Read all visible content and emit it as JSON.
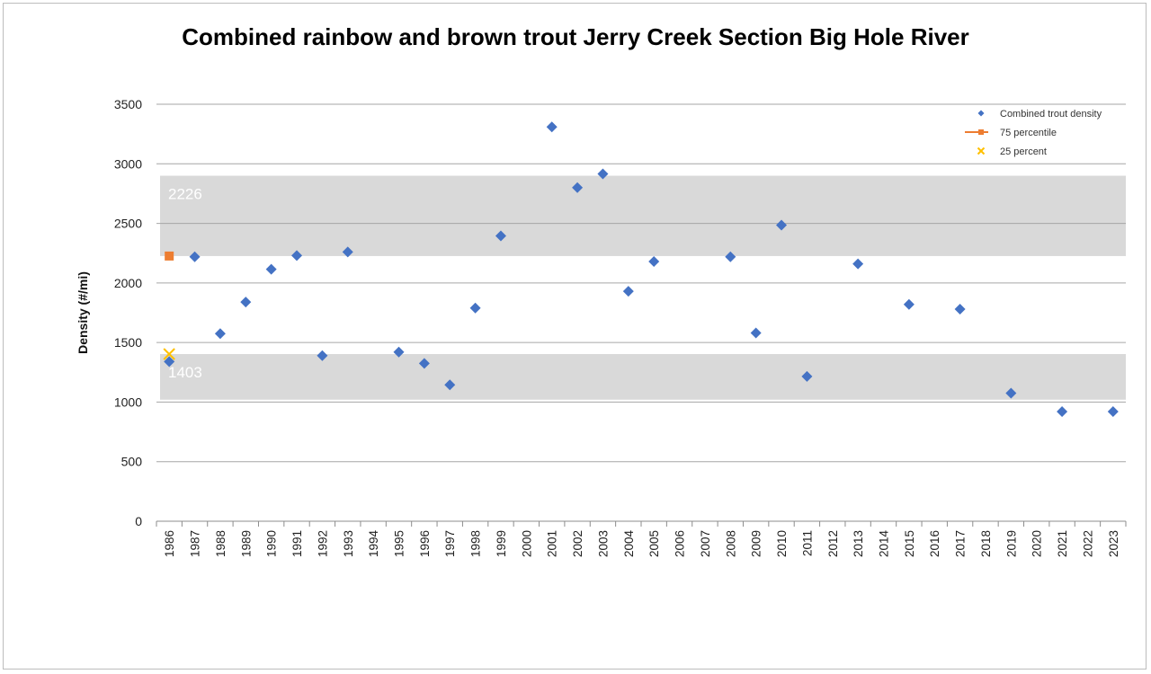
{
  "chart_data": {
    "type": "scatter",
    "title": "Combined rainbow and brown trout Jerry Creek Section Big Hole River",
    "ylabel": "Density (#/mi)",
    "xlabel": "",
    "ylim": [
      0,
      3500
    ],
    "yticks": [
      0,
      500,
      1000,
      1500,
      2000,
      2500,
      3000,
      3500
    ],
    "grid": "horizontal",
    "legend_position": "top-right",
    "categories": [
      "1986",
      "1987",
      "1988",
      "1989",
      "1990",
      "1991",
      "1992",
      "1993",
      "1994",
      "1995",
      "1996",
      "1997",
      "1998",
      "1999",
      "2000",
      "2001",
      "2002",
      "2003",
      "2004",
      "2005",
      "2006",
      "2007",
      "2008",
      "2009",
      "2010",
      "2011",
      "2012",
      "2013",
      "2014",
      "2015",
      "2016",
      "2017",
      "2018",
      "2019",
      "2020",
      "2021",
      "2022",
      "2023"
    ],
    "series": [
      {
        "name": "Combined trout density",
        "color": "#4472c4",
        "marker": "diamond",
        "points": [
          {
            "x": "1986",
            "y": 1340
          },
          {
            "x": "1987",
            "y": 2220
          },
          {
            "x": "1988",
            "y": 1575
          },
          {
            "x": "1989",
            "y": 1840
          },
          {
            "x": "1990",
            "y": 2115
          },
          {
            "x": "1991",
            "y": 2230
          },
          {
            "x": "1992",
            "y": 1390
          },
          {
            "x": "1993",
            "y": 2260
          },
          {
            "x": "1995",
            "y": 1420
          },
          {
            "x": "1996",
            "y": 1325
          },
          {
            "x": "1997",
            "y": 1145
          },
          {
            "x": "1998",
            "y": 1790
          },
          {
            "x": "1999",
            "y": 2395
          },
          {
            "x": "2001",
            "y": 3310
          },
          {
            "x": "2002",
            "y": 2800
          },
          {
            "x": "2003",
            "y": 2915
          },
          {
            "x": "2004",
            "y": 1930
          },
          {
            "x": "2005",
            "y": 2180
          },
          {
            "x": "2008",
            "y": 2220
          },
          {
            "x": "2009",
            "y": 1580
          },
          {
            "x": "2010",
            "y": 2485
          },
          {
            "x": "2011",
            "y": 1215
          },
          {
            "x": "2013",
            "y": 2160
          },
          {
            "x": "2015",
            "y": 1820
          },
          {
            "x": "2017",
            "y": 1780
          },
          {
            "x": "2019",
            "y": 1075
          },
          {
            "x": "2021",
            "y": 920
          },
          {
            "x": "2023",
            "y": 920
          }
        ]
      },
      {
        "name": "75 percentile",
        "color": "#ed7d31",
        "marker": "square",
        "points": [
          {
            "x": "1986",
            "y": 2226
          }
        ]
      },
      {
        "name": "25 percent",
        "color": "#ffc000",
        "marker": "x",
        "points": [
          {
            "x": "1986",
            "y": 1403
          }
        ]
      }
    ],
    "bands": [
      {
        "label": "2226",
        "y_from": 2226,
        "y_to": 2900,
        "color": "#d9d9d9"
      },
      {
        "label": "1403",
        "y_from": 1020,
        "y_to": 1403,
        "color": "#d9d9d9"
      }
    ]
  }
}
